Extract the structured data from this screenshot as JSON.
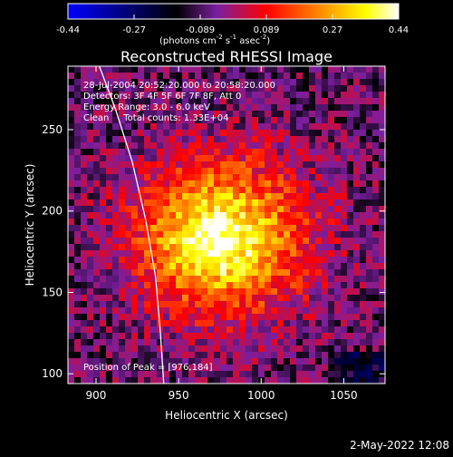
{
  "colorbar": {
    "ticks": [
      "-0.44",
      "-0.27",
      "-0.089",
      "0.089",
      "0.27",
      "0.44"
    ],
    "units_prefix": "(photons cm",
    "units_exp1": "-2",
    "units_mid": " s",
    "units_exp2": "-1",
    "units_suffix": " asec",
    "units_exp3": "-2",
    "units_close": ")"
  },
  "chart_data": {
    "type": "heatmap",
    "title": "Reconstructed RHESSI Image",
    "xlabel": "Heliocentric X (arcsec)",
    "ylabel": "Heliocentric Y (arcsec)",
    "xlim": [
      883,
      1075
    ],
    "ylim": [
      94,
      289
    ],
    "xticks": [
      900,
      950,
      1000,
      1050
    ],
    "yticks": [
      100,
      150,
      200,
      250
    ],
    "xtick_labels": [
      "900",
      "950",
      "1000",
      "1050"
    ],
    "ytick_labels": [
      "100",
      "150",
      "200",
      "250"
    ],
    "clim": [
      -0.44,
      0.44
    ],
    "colormap": [
      "#0000ff",
      "#000000",
      "#7a1fa0",
      "#ff0000",
      "#ff8000",
      "#ffff00",
      "#ffffff"
    ],
    "limb_curve": [
      [
        902,
        289
      ],
      [
        912,
        262
      ],
      [
        922,
        230
      ],
      [
        930,
        195
      ],
      [
        936,
        160
      ],
      [
        939,
        125
      ],
      [
        941,
        94
      ]
    ],
    "peak": [
      976,
      184
    ],
    "annotations": {
      "time": "28-Jul-2004 20:52:20.000 to 20:58:20.000",
      "detectors": "Detectors: 3F 4F 5F 6F 7F 8F, Att 0",
      "energy": "Energy Range: 3.0 - 6.0 keV",
      "clean": "Clean     Total counts: 1.33E+04",
      "peak_label": "Position of Peak = [976,184]"
    }
  },
  "footer": {
    "timestamp": "2-May-2022 12:08"
  }
}
